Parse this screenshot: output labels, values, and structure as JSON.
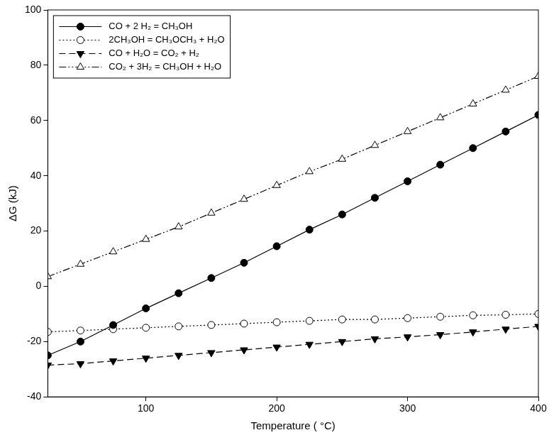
{
  "chart_data": {
    "type": "line",
    "x_label": "Temperature ( °C)",
    "y_label": "ΔG (kJ)",
    "x": [
      25,
      50,
      75,
      100,
      125,
      150,
      175,
      200,
      225,
      250,
      275,
      300,
      325,
      350,
      375,
      400
    ],
    "series": [
      {
        "name": "CO + 2 H₂ = CH₃OH",
        "color": "#000000",
        "marker": "circle",
        "line_style": "solid",
        "values": [
          -25,
          -20,
          -14,
          -8,
          -2.5,
          3,
          8.5,
          14.5,
          20.5,
          26,
          32,
          38,
          44,
          50,
          56,
          62
        ]
      },
      {
        "name": "2CH₃OH = CH₃OCH₃ + H₂O",
        "color": "#000000",
        "marker": "circle-open",
        "line_style": "dotted",
        "values": [
          -16.5,
          -16,
          -15.5,
          -15,
          -14.5,
          -14,
          -13.5,
          -13,
          -12.5,
          -12,
          -12,
          -11.5,
          -11,
          -10.5,
          -10.3,
          -10
        ]
      },
      {
        "name": "CO + H₂O = CO₂ + H₂",
        "color": "#000000",
        "marker": "triangle-down",
        "line_style": "dashed",
        "values": [
          -28.5,
          -28,
          -27,
          -26,
          -25,
          -24,
          -23,
          -22,
          -21,
          -20,
          -19,
          -18.3,
          -17.5,
          -16.5,
          -15.5,
          -14.5
        ]
      },
      {
        "name": "CO₂ + 3H₂ = CH₃OH + H₂O",
        "color": "#000000",
        "marker": "triangle-open",
        "line_style": "dashdotdot",
        "values": [
          3.5,
          8,
          12.5,
          17,
          21.5,
          26.5,
          31.5,
          36.5,
          41.5,
          46,
          51,
          56,
          61,
          66,
          71,
          76
        ]
      }
    ],
    "xlim": [
      25,
      400
    ],
    "xticks": [
      100,
      200,
      300,
      400
    ],
    "ylim": [
      -40,
      100
    ],
    "yticks": [
      -40,
      -20,
      0,
      20,
      40,
      60,
      80,
      100
    ],
    "grid": false,
    "legend": "top-left"
  }
}
